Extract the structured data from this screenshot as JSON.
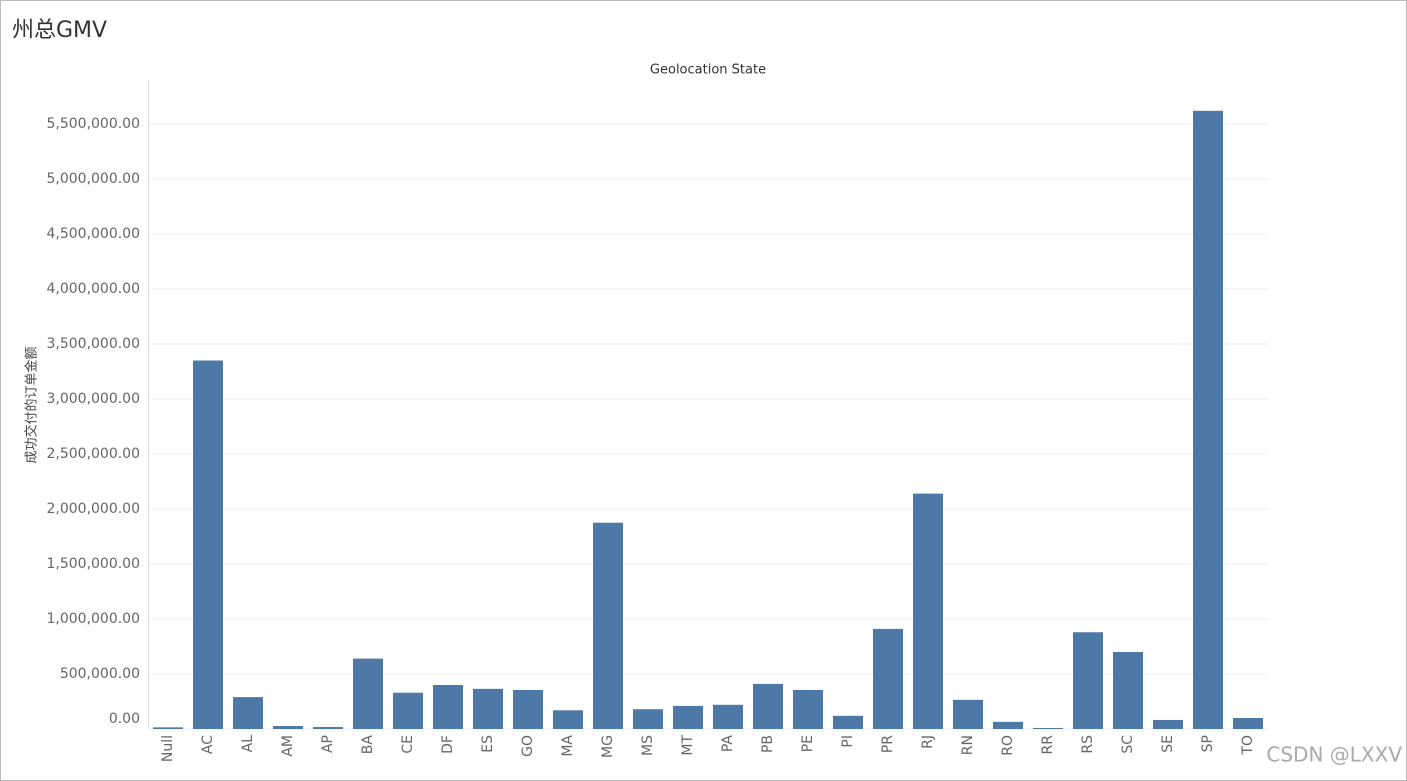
{
  "chart_data": {
    "type": "bar",
    "title": "州总GMV",
    "subtitle": "Geolocation State",
    "y_label": "成功交付的订单金额",
    "categories": [
      "Null",
      "AC",
      "AL",
      "AM",
      "AP",
      "BA",
      "CE",
      "DF",
      "ES",
      "GO",
      "MA",
      "MG",
      "MS",
      "MT",
      "PA",
      "PB",
      "PE",
      "PI",
      "PR",
      "RJ",
      "RN",
      "RO",
      "RR",
      "RS",
      "SC",
      "SE",
      "SP",
      "TO"
    ],
    "values": [
      15000,
      3350000,
      290000,
      27000,
      18000,
      640000,
      330000,
      400000,
      365000,
      355000,
      170000,
      1875000,
      180000,
      210000,
      220000,
      410000,
      355000,
      120000,
      910000,
      2140000,
      265000,
      65000,
      9000,
      880000,
      700000,
      82000,
      5620000,
      100000
    ],
    "color": "#4e79a7",
    "ylim": [
      0,
      5900000
    ],
    "yticks": [
      {
        "value": 0,
        "label": "0.00"
      },
      {
        "value": 500000,
        "label": "500,000.00"
      },
      {
        "value": 1000000,
        "label": "1,000,000.00"
      },
      {
        "value": 1500000,
        "label": "1,500,000.00"
      },
      {
        "value": 2000000,
        "label": "2,000,000.00"
      },
      {
        "value": 2500000,
        "label": "2,500,000.00"
      },
      {
        "value": 3000000,
        "label": "3,000,000.00"
      },
      {
        "value": 3500000,
        "label": "3,500,000.00"
      },
      {
        "value": 4000000,
        "label": "4,000,000.00"
      },
      {
        "value": 4500000,
        "label": "4,500,000.00"
      },
      {
        "value": 5000000,
        "label": "5,000,000.00"
      },
      {
        "value": 5500000,
        "label": "5,500,000.00"
      }
    ],
    "grid": true
  },
  "watermark": "CSDN @LXXV"
}
